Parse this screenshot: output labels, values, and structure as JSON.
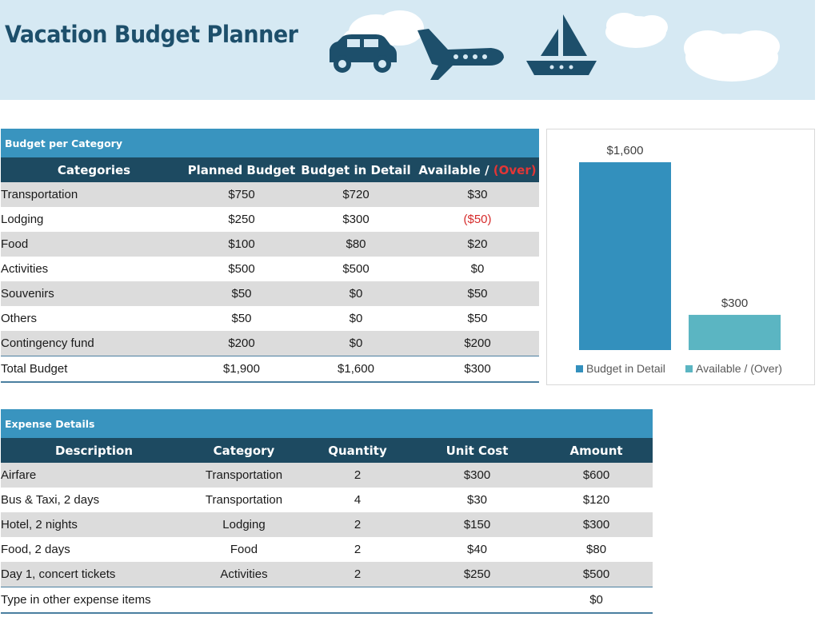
{
  "title": "Vacation Budget Planner",
  "colors": {
    "header_bg": "#d6e9f3",
    "title": "#1d4f6b",
    "section_bar": "#3994bf",
    "column_header": "#1d4a61",
    "row_band": "#dcdcdc",
    "negative": "#d62b2b",
    "series_detail": "#3390bd",
    "series_available": "#5bb5c2"
  },
  "icons": [
    "car-icon",
    "airplane-icon",
    "sailboat-icon",
    "cloud-icon"
  ],
  "budget": {
    "section_title": "Budget per Category",
    "headers": {
      "categories": "Categories",
      "planned": "Planned Budget",
      "detail": "Budget in Detail",
      "available": "Available /",
      "over": "(Over)"
    },
    "rows": [
      {
        "category": "Transportation",
        "planned": "$750",
        "detail": "$720",
        "available": "$30"
      },
      {
        "category": "Lodging",
        "planned": "$250",
        "detail": "$300",
        "available": "($50)"
      },
      {
        "category": "Food",
        "planned": "$100",
        "detail": "$80",
        "available": "$20"
      },
      {
        "category": "Activities",
        "planned": "$500",
        "detail": "$500",
        "available": "$0"
      },
      {
        "category": "Souvenirs",
        "planned": "$50",
        "detail": "$0",
        "available": "$50"
      },
      {
        "category": "Others",
        "planned": "$50",
        "detail": "$0",
        "available": "$50"
      },
      {
        "category": "Contingency fund",
        "planned": "$200",
        "detail": "$0",
        "available": "$200"
      }
    ],
    "total": {
      "label": "Total Budget",
      "planned": "$1,900",
      "detail": "$1,600",
      "available": "$300"
    }
  },
  "chart_data": {
    "type": "bar",
    "categories": [
      "Budget in Detail",
      "Available / (Over)"
    ],
    "values": [
      1600,
      300
    ],
    "data_labels": [
      "$1,600",
      "$300"
    ],
    "legend": [
      "Budget in Detail",
      "Available / (Over)"
    ],
    "legend_position": "bottom",
    "grid": false,
    "ylim": [
      0,
      1600
    ]
  },
  "expenses": {
    "section_title": "Expense Details",
    "headers": {
      "description": "Description",
      "category": "Category",
      "quantity": "Quantity",
      "unit_cost": "Unit Cost",
      "amount": "Amount"
    },
    "rows": [
      {
        "description": "Airfare",
        "category": "Transportation",
        "quantity": "2",
        "unit_cost": "$300",
        "amount": "$600"
      },
      {
        "description": "Bus & Taxi, 2 days",
        "category": "Transportation",
        "quantity": "4",
        "unit_cost": "$30",
        "amount": "$120"
      },
      {
        "description": "Hotel, 2 nights",
        "category": "Lodging",
        "quantity": "2",
        "unit_cost": "$150",
        "amount": "$300"
      },
      {
        "description": "Food, 2 days",
        "category": "Food",
        "quantity": "2",
        "unit_cost": "$40",
        "amount": "$80"
      },
      {
        "description": "Day 1, concert tickets",
        "category": "Activities",
        "quantity": "2",
        "unit_cost": "$250",
        "amount": "$500"
      },
      {
        "description": "Type in other expense items",
        "category": "",
        "quantity": "",
        "unit_cost": "",
        "amount": "$0"
      }
    ]
  }
}
